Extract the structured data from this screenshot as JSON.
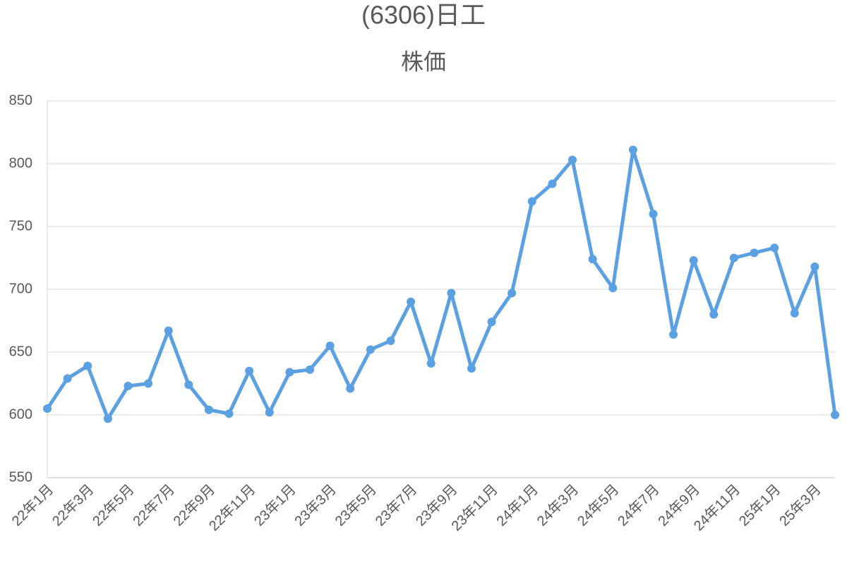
{
  "chart_data": {
    "type": "line",
    "title": "(6306)日工",
    "subtitle": "株価",
    "categories": [
      "22年1月",
      null,
      "22年3月",
      null,
      "22年5月",
      null,
      "22年7月",
      null,
      "22年9月",
      null,
      "22年11月",
      null,
      "23年1月",
      null,
      "23年3月",
      null,
      "23年5月",
      null,
      "23年7月",
      null,
      "23年9月",
      null,
      "23年11月",
      null,
      "24年1月",
      null,
      "24年3月",
      null,
      "24年5月",
      null,
      "24年7月",
      null,
      "24年9月",
      null,
      "24年11月",
      null,
      "25年1月",
      null,
      "25年3月",
      null
    ],
    "series": [
      {
        "name": "株価",
        "color": "#5aa0e3",
        "values": [
          605,
          629,
          639,
          597,
          623,
          625,
          667,
          624,
          604,
          601,
          635,
          602,
          634,
          636,
          655,
          621,
          652,
          659,
          690,
          641,
          697,
          637,
          674,
          697,
          770,
          784,
          803,
          724,
          701,
          811,
          760,
          664,
          723,
          680,
          725,
          729,
          733,
          681,
          718,
          600
        ]
      }
    ],
    "ylim": [
      550,
      850
    ],
    "yticks": [
      550,
      600,
      650,
      700,
      750,
      800,
      850
    ],
    "grid": true
  }
}
